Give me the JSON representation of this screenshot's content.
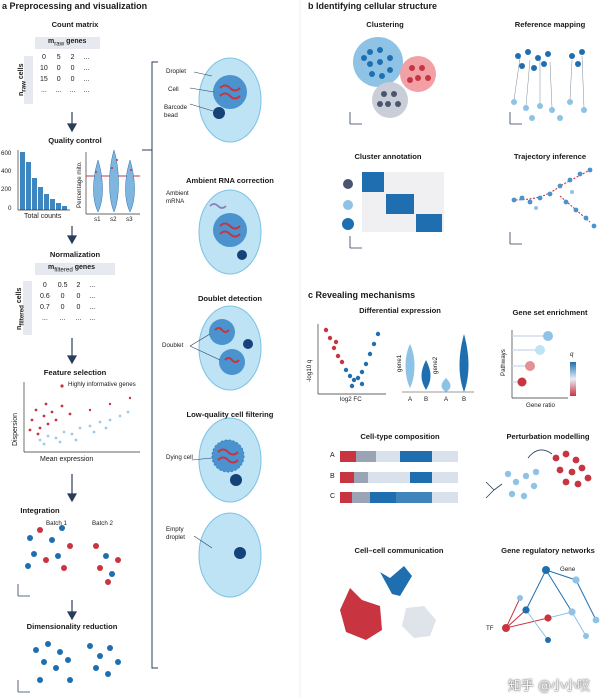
{
  "panel_a": {
    "letter": "a",
    "title": "Preprocessing and visualization",
    "count_matrix": {
      "title": "Count matrix",
      "col_header_main": "m",
      "col_header_sub": "raw",
      "col_header_rest": " genes",
      "row_header_main": "n",
      "row_header_sub": "raw",
      "row_header_rest": " cells",
      "rows": [
        [
          "0",
          "5",
          "2",
          "..."
        ],
        [
          "10",
          "0",
          "0",
          "..."
        ],
        [
          "15",
          "0",
          "0",
          "..."
        ],
        [
          "...",
          "...",
          "...",
          "..."
        ]
      ]
    },
    "quality_control": {
      "title": "Quality control",
      "hist_yticks": [
        "600",
        "400",
        "200",
        "0"
      ],
      "hist_xlabel": "Total counts",
      "violin_ylabel": "Percentage mito.",
      "violin_xticks": [
        "s1",
        "s2",
        "s3"
      ]
    },
    "normalization": {
      "title": "Normalization",
      "col_header_main": "m",
      "col_header_sub": "filtered",
      "col_header_rest": " genes",
      "row_header_main": "n",
      "row_header_sub": "filtered",
      "row_header_rest": " cells",
      "rows": [
        [
          "0",
          "0.5",
          "2",
          "..."
        ],
        [
          "0.6",
          "0",
          "0",
          "..."
        ],
        [
          "0.7",
          "0",
          "0",
          "..."
        ],
        [
          "...",
          "...",
          "...",
          "..."
        ]
      ]
    },
    "feature_selection": {
      "title": "Feature selection",
      "legend": "Highly informative genes",
      "ylabel": "Dispersion",
      "xlabel": "Mean expression"
    },
    "integration": {
      "title": "Integration",
      "batch1": "Batch 1",
      "batch2": "Batch 2"
    },
    "dim_reduction": {
      "title": "Dimensionality reduction"
    },
    "droplet": {
      "label_droplet": "Droplet",
      "label_cell": "Cell",
      "label_barcode": "Barcode bead"
    },
    "ambient": {
      "title": "Ambient RNA correction",
      "label_mrna": "Ambient mRNA"
    },
    "doublet": {
      "title": "Doublet detection",
      "label": "Doublet"
    },
    "lowquality": {
      "title": "Low-quality cell filtering",
      "label_dying": "Dying cell",
      "label_empty": "Empty droplet"
    }
  },
  "panel_b": {
    "letter": "b",
    "title": "Identifying cellular structure",
    "clustering": "Clustering",
    "reference_mapping": "Reference mapping",
    "cluster_annotation": "Cluster annotation",
    "trajectory_inference": "Trajectory inference"
  },
  "panel_c": {
    "letter": "c",
    "title": "Revealing mechanisms",
    "diffexp": {
      "title": "Differential expression",
      "ylabel": "-log10 q",
      "xlabel": "log2 FC",
      "gene1": "gene1",
      "gene2": "gene2",
      "a": "A",
      "b": "B"
    },
    "gse": {
      "title": "Gene set enrichment",
      "ylabel": "Pathways",
      "xlabel": "Gene ratio",
      "legend": "q"
    },
    "composition": {
      "title": "Cell-type composition",
      "rows": [
        "A",
        "B",
        "C"
      ]
    },
    "perturbation": {
      "title": "Perturbation modelling"
    },
    "cellcomm": {
      "title": "Cell–cell communication"
    },
    "grn": {
      "title": "Gene regulatory networks",
      "gene_label": "Gene",
      "tf_label": "TF"
    }
  },
  "watermark": "知乎 @小小哎",
  "colors": {
    "blue": "#1f6fb0",
    "light_blue": "#8ec3e6",
    "red": "#c8343f",
    "grey": "#9aa4b5",
    "droplet": "#bde3f5"
  }
}
